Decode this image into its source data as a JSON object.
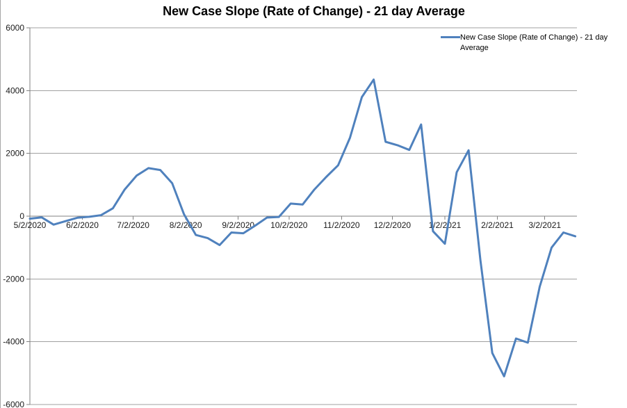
{
  "chart_data": {
    "type": "line",
    "title": "New Case Slope (Rate of Change) - 21 day Average",
    "legend": {
      "position": "top-right",
      "entries": [
        {
          "label": "New Case Slope (Rate of Change) - 21 day Average",
          "color": "#4F81BD"
        }
      ]
    },
    "xlabel": "",
    "ylabel": "",
    "ylim": [
      -6000,
      6000
    ],
    "y_ticks": [
      6000,
      4000,
      2000,
      0,
      -2000,
      -4000,
      -6000
    ],
    "x_tick_labels": [
      "5/2/2020",
      "6/2/2020",
      "7/2/2020",
      "8/2/2020",
      "9/2/2020",
      "10/2/2020",
      "11/2/2020",
      "12/2/2020",
      "1/2/2021",
      "2/2/2021",
      "3/2/2021"
    ],
    "x_tick_day_offsets": [
      0,
      31,
      61,
      92,
      123,
      153,
      184,
      214,
      245,
      276,
      304
    ],
    "x_total_days": 323,
    "interval_days": 7,
    "grid": true,
    "colors": {
      "line": "#4F81BD",
      "gridline": "#A0A0A0",
      "axis": "#808080",
      "text": "#1a1a1a"
    },
    "series": [
      {
        "name": "New Case Slope (Rate of Change) - 21 day Average",
        "color": "#4F81BD",
        "dates": [
          "5/2/2020",
          "5/9/2020",
          "5/16/2020",
          "5/23/2020",
          "5/30/2020",
          "6/6/2020",
          "6/13/2020",
          "6/20/2020",
          "6/27/2020",
          "7/4/2020",
          "7/11/2020",
          "7/18/2020",
          "7/25/2020",
          "8/1/2020",
          "8/8/2020",
          "8/15/2020",
          "8/22/2020",
          "8/29/2020",
          "9/5/2020",
          "9/12/2020",
          "9/19/2020",
          "9/26/2020",
          "10/3/2020",
          "10/10/2020",
          "10/17/2020",
          "10/24/2020",
          "10/31/2020",
          "11/7/2020",
          "11/14/2020",
          "11/21/2020",
          "11/28/2020",
          "12/5/2020",
          "12/12/2020",
          "12/19/2020",
          "12/26/2020",
          "1/2/2021",
          "1/9/2021",
          "1/16/2021",
          "1/23/2021",
          "1/30/2021",
          "2/6/2021",
          "2/13/2021",
          "2/20/2021",
          "2/27/2021",
          "3/6/2021",
          "3/13/2021",
          "3/20/2021"
        ],
        "values": [
          -80,
          -40,
          -270,
          -160,
          -50,
          -20,
          30,
          250,
          850,
          1290,
          1530,
          1470,
          1050,
          60,
          -600,
          -700,
          -920,
          -520,
          -545,
          -300,
          -45,
          -25,
          400,
          370,
          850,
          1250,
          1620,
          2500,
          3795,
          4350,
          2370,
          2260,
          2110,
          2920,
          -480,
          -880,
          1400,
          2100,
          -1400,
          -4360,
          -5100,
          -3900,
          -4030,
          -2250,
          -1000,
          -520,
          -640
        ]
      }
    ]
  }
}
